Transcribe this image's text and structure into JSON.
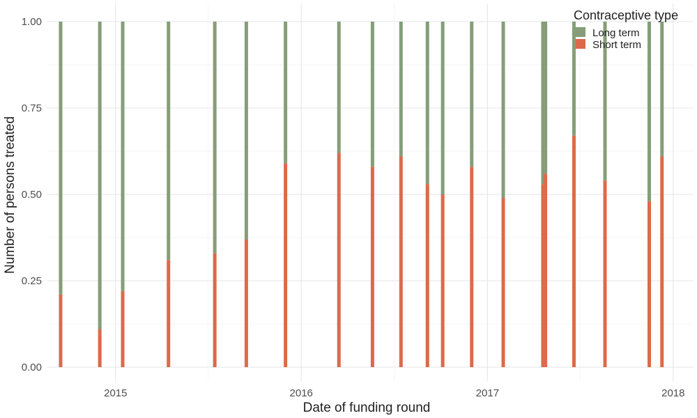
{
  "chart_data": {
    "type": "bar",
    "stacked": true,
    "xlabel": "Date of funding round",
    "ylabel": "Number of persons treated",
    "ylim": [
      0,
      1
    ],
    "yticks": [
      "0.00",
      "0.25",
      "0.50",
      "0.75",
      "1.00"
    ],
    "xlim": [
      "2014-08-20",
      "2018-02-10"
    ],
    "xticks": [
      {
        "date": "2015-01-01",
        "label": "2015"
      },
      {
        "date": "2016-01-01",
        "label": "2016"
      },
      {
        "date": "2017-01-01",
        "label": "2017"
      },
      {
        "date": "2018-01-01",
        "label": "2018"
      }
    ],
    "grid": true,
    "legend": {
      "title": "Contraceptive type",
      "position": "top-right",
      "entries": [
        {
          "label": "Long term",
          "color": "#859e78"
        },
        {
          "label": "Short term",
          "color": "#dc6a4b"
        }
      ]
    },
    "series": [
      {
        "name": "Short term",
        "color": "#dc6a4b"
      },
      {
        "name": "Long term",
        "color": "#859e78"
      }
    ],
    "dates": [
      "2014-09-15",
      "2014-12-01",
      "2015-01-15",
      "2015-04-15",
      "2015-07-15",
      "2015-09-15",
      "2015-12-01",
      "2016-03-15",
      "2016-05-20",
      "2016-07-15",
      "2016-09-05",
      "2016-10-05",
      "2016-12-01",
      "2017-02-01",
      "2017-04-20",
      "2017-04-25",
      "2017-06-20",
      "2017-08-20",
      "2017-11-15",
      "2017-12-10"
    ],
    "short_term": [
      0.21,
      0.11,
      0.22,
      0.31,
      0.33,
      0.37,
      0.59,
      0.62,
      0.58,
      0.61,
      0.53,
      0.5,
      0.58,
      0.49,
      0.53,
      0.56,
      0.67,
      0.54,
      0.48,
      0.61
    ],
    "long_term": [
      0.79,
      0.89,
      0.78,
      0.69,
      0.67,
      0.63,
      0.41,
      0.38,
      0.42,
      0.39,
      0.47,
      0.5,
      0.42,
      0.51,
      0.47,
      0.44,
      0.33,
      0.46,
      0.52,
      0.39
    ]
  }
}
